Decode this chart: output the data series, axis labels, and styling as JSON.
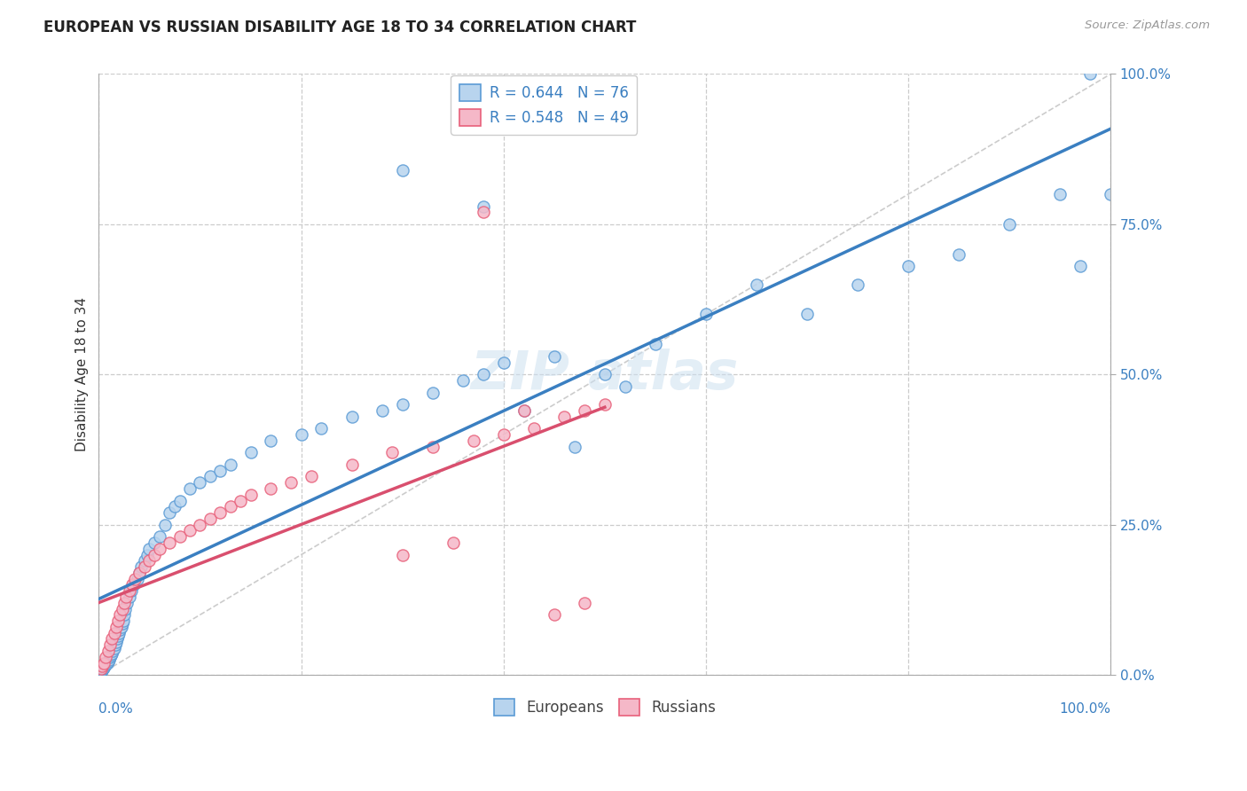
{
  "title": "EUROPEAN VS RUSSIAN DISABILITY AGE 18 TO 34 CORRELATION CHART",
  "source": "Source: ZipAtlas.com",
  "ylabel": "Disability Age 18 to 34",
  "legend_european": "R = 0.644   N = 76",
  "legend_russian": "R = 0.548   N = 49",
  "european_color": "#b8d4ee",
  "russian_color": "#f5b8c8",
  "european_edge_color": "#5b9bd5",
  "russian_edge_color": "#e8607a",
  "european_line_color": "#3a7fc1",
  "russian_line_color": "#d94f6e",
  "diagonal_color": "#cccccc",
  "ytick_labels": [
    "0.0%",
    "25.0%",
    "50.0%",
    "75.0%",
    "100.0%"
  ],
  "ytick_values": [
    0,
    25,
    50,
    75,
    100
  ],
  "eu_x": [
    0.2,
    0.3,
    0.4,
    0.5,
    0.6,
    0.7,
    0.8,
    0.9,
    1.0,
    1.1,
    1.2,
    1.3,
    1.4,
    1.5,
    1.6,
    1.7,
    1.8,
    1.9,
    2.0,
    2.1,
    2.2,
    2.3,
    2.4,
    2.5,
    2.6,
    2.8,
    3.0,
    3.2,
    3.5,
    3.8,
    4.0,
    4.2,
    4.5,
    4.8,
    5.0,
    5.5,
    6.0,
    6.5,
    7.0,
    7.5,
    8.0,
    9.0,
    10.0,
    11.0,
    12.0,
    13.0,
    15.0,
    17.0,
    20.0,
    22.0,
    25.0,
    28.0,
    30.0,
    33.0,
    36.0,
    38.0,
    40.0,
    45.0,
    50.0,
    55.0,
    60.0,
    65.0,
    70.0,
    75.0,
    80.0,
    85.0,
    90.0,
    95.0,
    97.0,
    98.0,
    100.0,
    30.0,
    38.0,
    42.0,
    47.0,
    52.0
  ],
  "eu_y": [
    0.5,
    0.8,
    1.0,
    1.2,
    1.5,
    1.8,
    2.0,
    2.2,
    2.5,
    3.0,
    3.2,
    3.5,
    4.0,
    4.5,
    5.0,
    5.5,
    6.0,
    6.5,
    7.0,
    7.5,
    8.0,
    8.5,
    9.0,
    10.0,
    11.0,
    12.0,
    13.0,
    14.0,
    15.0,
    16.0,
    17.0,
    18.0,
    19.0,
    20.0,
    21.0,
    22.0,
    23.0,
    25.0,
    27.0,
    28.0,
    29.0,
    31.0,
    32.0,
    33.0,
    34.0,
    35.0,
    37.0,
    39.0,
    40.0,
    41.0,
    43.0,
    44.0,
    45.0,
    47.0,
    49.0,
    50.0,
    52.0,
    53.0,
    50.0,
    55.0,
    60.0,
    65.0,
    60.0,
    65.0,
    68.0,
    70.0,
    75.0,
    80.0,
    68.0,
    100.0,
    80.0,
    84.0,
    78.0,
    44.0,
    38.0,
    48.0
  ],
  "ru_x": [
    0.2,
    0.3,
    0.5,
    0.7,
    0.9,
    1.1,
    1.3,
    1.5,
    1.7,
    1.9,
    2.1,
    2.3,
    2.5,
    2.7,
    3.0,
    3.3,
    3.6,
    4.0,
    4.5,
    5.0,
    5.5,
    6.0,
    7.0,
    8.0,
    9.0,
    10.0,
    11.0,
    12.0,
    13.0,
    14.0,
    15.0,
    17.0,
    19.0,
    21.0,
    25.0,
    29.0,
    33.0,
    37.0,
    40.0,
    43.0,
    46.0,
    48.0,
    50.0,
    38.0,
    42.0,
    45.0,
    48.0,
    30.0,
    35.0
  ],
  "ru_y": [
    1.0,
    1.5,
    2.0,
    3.0,
    4.0,
    5.0,
    6.0,
    7.0,
    8.0,
    9.0,
    10.0,
    11.0,
    12.0,
    13.0,
    14.0,
    15.0,
    16.0,
    17.0,
    18.0,
    19.0,
    20.0,
    21.0,
    22.0,
    23.0,
    24.0,
    25.0,
    26.0,
    27.0,
    28.0,
    29.0,
    30.0,
    31.0,
    32.0,
    33.0,
    35.0,
    37.0,
    38.0,
    39.0,
    40.0,
    41.0,
    43.0,
    44.0,
    45.0,
    77.0,
    44.0,
    10.0,
    12.0,
    20.0,
    22.0
  ]
}
